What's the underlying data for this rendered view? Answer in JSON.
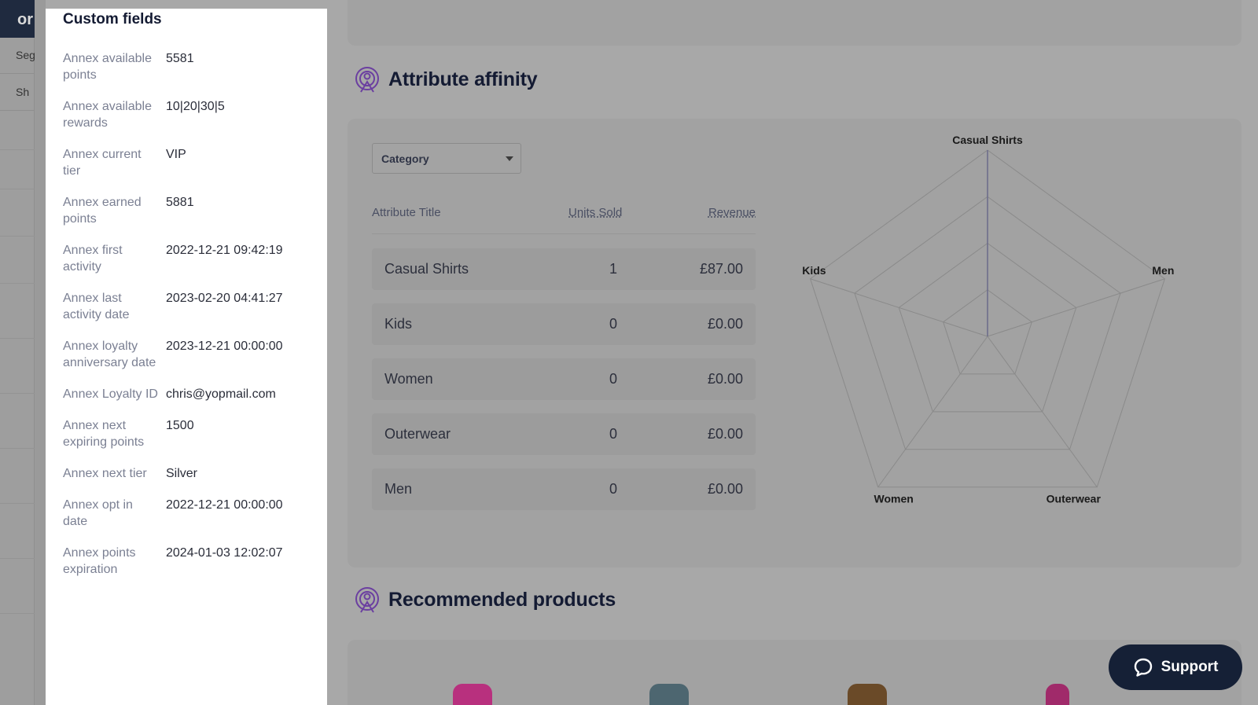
{
  "background": {
    "nav": {
      "logo_text": "or",
      "items": [
        {
          "label": "Seg"
        },
        {
          "label": "Sh"
        }
      ]
    },
    "attribute_affinity": {
      "title": "Attribute affinity",
      "icon": "target-person-icon",
      "select": {
        "value": "Category"
      },
      "table": {
        "headers": {
          "title": "Attribute Title",
          "units": "Units Sold",
          "revenue": "Revenue"
        },
        "rows": [
          {
            "title": "Casual Shirts",
            "units": "1",
            "revenue": "£87.00"
          },
          {
            "title": "Kids",
            "units": "0",
            "revenue": "£0.00"
          },
          {
            "title": "Women",
            "units": "0",
            "revenue": "£0.00"
          },
          {
            "title": "Outerwear",
            "units": "0",
            "revenue": "£0.00"
          },
          {
            "title": "Men",
            "units": "0",
            "revenue": "£0.00"
          }
        ]
      },
      "chart_data": {
        "type": "radar",
        "axes": [
          "Casual Shirts",
          "Men",
          "Outerwear",
          "Women",
          "Kids"
        ],
        "values": [
          1,
          0,
          0,
          0,
          0
        ],
        "rings": 4,
        "title": "",
        "grid": true
      }
    },
    "recommended": {
      "title": "Recommended products",
      "icon": "target-person-icon",
      "product_colors": [
        "#b8307e",
        "#4d6670",
        "#6a4a28",
        "#a02a6a"
      ]
    },
    "support": {
      "label": "Support",
      "icon": "chat-bubble-icon"
    }
  },
  "drawer": {
    "title": "Custom fields",
    "fields": [
      {
        "label": "Annex available points",
        "value": "5581"
      },
      {
        "label": "Annex available rewards",
        "value": "10|20|30|5"
      },
      {
        "label": "Annex current tier",
        "value": "VIP"
      },
      {
        "label": "Annex earned points",
        "value": "5881"
      },
      {
        "label": "Annex first activity",
        "value": "2022-12-21 09:42:19"
      },
      {
        "label": "Annex last activity date",
        "value": "2023-02-20 04:41:27"
      },
      {
        "label": "Annex loyalty anniversary date",
        "value": "2023-12-21 00:00:00"
      },
      {
        "label": "Annex Loyalty ID",
        "value": "chris@yopmail.com"
      },
      {
        "label": "Annex next expiring points",
        "value": "1500"
      },
      {
        "label": "Annex next tier",
        "value": "Silver"
      },
      {
        "label": "Annex opt in date",
        "value": "2022-12-21 00:00:00"
      },
      {
        "label": "Annex points expiration",
        "value": "2024-01-03 12:02:07"
      }
    ]
  }
}
